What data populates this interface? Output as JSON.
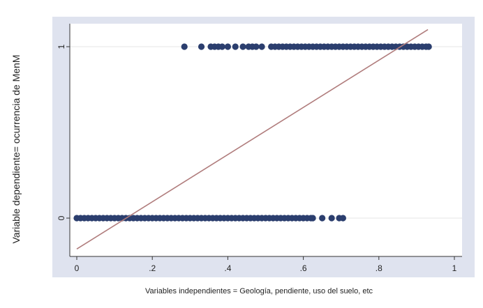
{
  "chart_data": {
    "type": "scatter",
    "title": "",
    "xlabel": "Variables independientes = Geología, pendiente, uso del suelo, etc",
    "ylabel": "Variable dependiente= ocurrencia de MenM",
    "xlim": [
      0,
      1
    ],
    "xticks": [
      0,
      0.2,
      0.4,
      0.6,
      0.8,
      1
    ],
    "xtick_labels": [
      "0",
      ".2",
      ".4",
      ".6",
      ".8",
      "1"
    ],
    "yticks": [
      0,
      1
    ],
    "ytick_labels": [
      "0",
      "1"
    ],
    "grid": true,
    "series": [
      {
        "kind": "points",
        "color": "#2b3e6e",
        "points": [
          {
            "x": 0.285,
            "y": 1
          },
          {
            "x": 0.33,
            "y": 1
          },
          {
            "x": 0.355,
            "y": 1
          },
          {
            "x": 0.365,
            "y": 1
          },
          {
            "x": 0.375,
            "y": 1
          },
          {
            "x": 0.385,
            "y": 1
          },
          {
            "x": 0.4,
            "y": 1
          },
          {
            "x": 0.42,
            "y": 1
          },
          {
            "x": 0.44,
            "y": 1
          },
          {
            "x": 0.455,
            "y": 1
          },
          {
            "x": 0.465,
            "y": 1
          },
          {
            "x": 0.475,
            "y": 1
          },
          {
            "x": 0.49,
            "y": 1
          },
          {
            "x": 0.515,
            "y": 1
          },
          {
            "x": 0.525,
            "y": 1
          },
          {
            "x": 0.535,
            "y": 1
          },
          {
            "x": 0.545,
            "y": 1
          },
          {
            "x": 0.555,
            "y": 1
          },
          {
            "x": 0.565,
            "y": 1
          },
          {
            "x": 0.575,
            "y": 1
          },
          {
            "x": 0.585,
            "y": 1
          },
          {
            "x": 0.595,
            "y": 1
          },
          {
            "x": 0.605,
            "y": 1
          },
          {
            "x": 0.615,
            "y": 1
          },
          {
            "x": 0.625,
            "y": 1
          },
          {
            "x": 0.635,
            "y": 1
          },
          {
            "x": 0.645,
            "y": 1
          },
          {
            "x": 0.655,
            "y": 1
          },
          {
            "x": 0.665,
            "y": 1
          },
          {
            "x": 0.675,
            "y": 1
          },
          {
            "x": 0.685,
            "y": 1
          },
          {
            "x": 0.695,
            "y": 1
          },
          {
            "x": 0.705,
            "y": 1
          },
          {
            "x": 0.715,
            "y": 1
          },
          {
            "x": 0.725,
            "y": 1
          },
          {
            "x": 0.735,
            "y": 1
          },
          {
            "x": 0.745,
            "y": 1
          },
          {
            "x": 0.755,
            "y": 1
          },
          {
            "x": 0.765,
            "y": 1
          },
          {
            "x": 0.775,
            "y": 1
          },
          {
            "x": 0.785,
            "y": 1
          },
          {
            "x": 0.795,
            "y": 1
          },
          {
            "x": 0.805,
            "y": 1
          },
          {
            "x": 0.815,
            "y": 1
          },
          {
            "x": 0.825,
            "y": 1
          },
          {
            "x": 0.835,
            "y": 1
          },
          {
            "x": 0.845,
            "y": 1
          },
          {
            "x": 0.855,
            "y": 1
          },
          {
            "x": 0.865,
            "y": 1
          },
          {
            "x": 0.875,
            "y": 1
          },
          {
            "x": 0.885,
            "y": 1
          },
          {
            "x": 0.895,
            "y": 1
          },
          {
            "x": 0.905,
            "y": 1
          },
          {
            "x": 0.915,
            "y": 1
          },
          {
            "x": 0.925,
            "y": 1
          },
          {
            "x": 0.932,
            "y": 1
          },
          {
            "x": 0.0,
            "y": 0
          },
          {
            "x": 0.01,
            "y": 0
          },
          {
            "x": 0.02,
            "y": 0
          },
          {
            "x": 0.03,
            "y": 0
          },
          {
            "x": 0.04,
            "y": 0
          },
          {
            "x": 0.05,
            "y": 0
          },
          {
            "x": 0.06,
            "y": 0
          },
          {
            "x": 0.07,
            "y": 0
          },
          {
            "x": 0.08,
            "y": 0
          },
          {
            "x": 0.09,
            "y": 0
          },
          {
            "x": 0.1,
            "y": 0
          },
          {
            "x": 0.11,
            "y": 0
          },
          {
            "x": 0.12,
            "y": 0
          },
          {
            "x": 0.13,
            "y": 0
          },
          {
            "x": 0.14,
            "y": 0
          },
          {
            "x": 0.15,
            "y": 0
          },
          {
            "x": 0.16,
            "y": 0
          },
          {
            "x": 0.17,
            "y": 0
          },
          {
            "x": 0.18,
            "y": 0
          },
          {
            "x": 0.19,
            "y": 0
          },
          {
            "x": 0.2,
            "y": 0
          },
          {
            "x": 0.21,
            "y": 0
          },
          {
            "x": 0.22,
            "y": 0
          },
          {
            "x": 0.23,
            "y": 0
          },
          {
            "x": 0.24,
            "y": 0
          },
          {
            "x": 0.25,
            "y": 0
          },
          {
            "x": 0.26,
            "y": 0
          },
          {
            "x": 0.27,
            "y": 0
          },
          {
            "x": 0.28,
            "y": 0
          },
          {
            "x": 0.29,
            "y": 0
          },
          {
            "x": 0.3,
            "y": 0
          },
          {
            "x": 0.31,
            "y": 0
          },
          {
            "x": 0.32,
            "y": 0
          },
          {
            "x": 0.33,
            "y": 0
          },
          {
            "x": 0.34,
            "y": 0
          },
          {
            "x": 0.35,
            "y": 0
          },
          {
            "x": 0.36,
            "y": 0
          },
          {
            "x": 0.37,
            "y": 0
          },
          {
            "x": 0.38,
            "y": 0
          },
          {
            "x": 0.39,
            "y": 0
          },
          {
            "x": 0.4,
            "y": 0
          },
          {
            "x": 0.41,
            "y": 0
          },
          {
            "x": 0.42,
            "y": 0
          },
          {
            "x": 0.43,
            "y": 0
          },
          {
            "x": 0.44,
            "y": 0
          },
          {
            "x": 0.45,
            "y": 0
          },
          {
            "x": 0.46,
            "y": 0
          },
          {
            "x": 0.47,
            "y": 0
          },
          {
            "x": 0.48,
            "y": 0
          },
          {
            "x": 0.49,
            "y": 0
          },
          {
            "x": 0.5,
            "y": 0
          },
          {
            "x": 0.51,
            "y": 0
          },
          {
            "x": 0.52,
            "y": 0
          },
          {
            "x": 0.53,
            "y": 0
          },
          {
            "x": 0.54,
            "y": 0
          },
          {
            "x": 0.55,
            "y": 0
          },
          {
            "x": 0.56,
            "y": 0
          },
          {
            "x": 0.57,
            "y": 0
          },
          {
            "x": 0.58,
            "y": 0
          },
          {
            "x": 0.59,
            "y": 0
          },
          {
            "x": 0.6,
            "y": 0
          },
          {
            "x": 0.61,
            "y": 0
          },
          {
            "x": 0.62,
            "y": 0
          },
          {
            "x": 0.625,
            "y": 0
          },
          {
            "x": 0.65,
            "y": 0
          },
          {
            "x": 0.675,
            "y": 0
          },
          {
            "x": 0.695,
            "y": 0
          },
          {
            "x": 0.705,
            "y": 0
          }
        ]
      },
      {
        "kind": "line",
        "color": "#b07c7c",
        "points": [
          {
            "x": 0.0,
            "y": -0.18
          },
          {
            "x": 0.93,
            "y": 1.1
          }
        ]
      }
    ]
  }
}
